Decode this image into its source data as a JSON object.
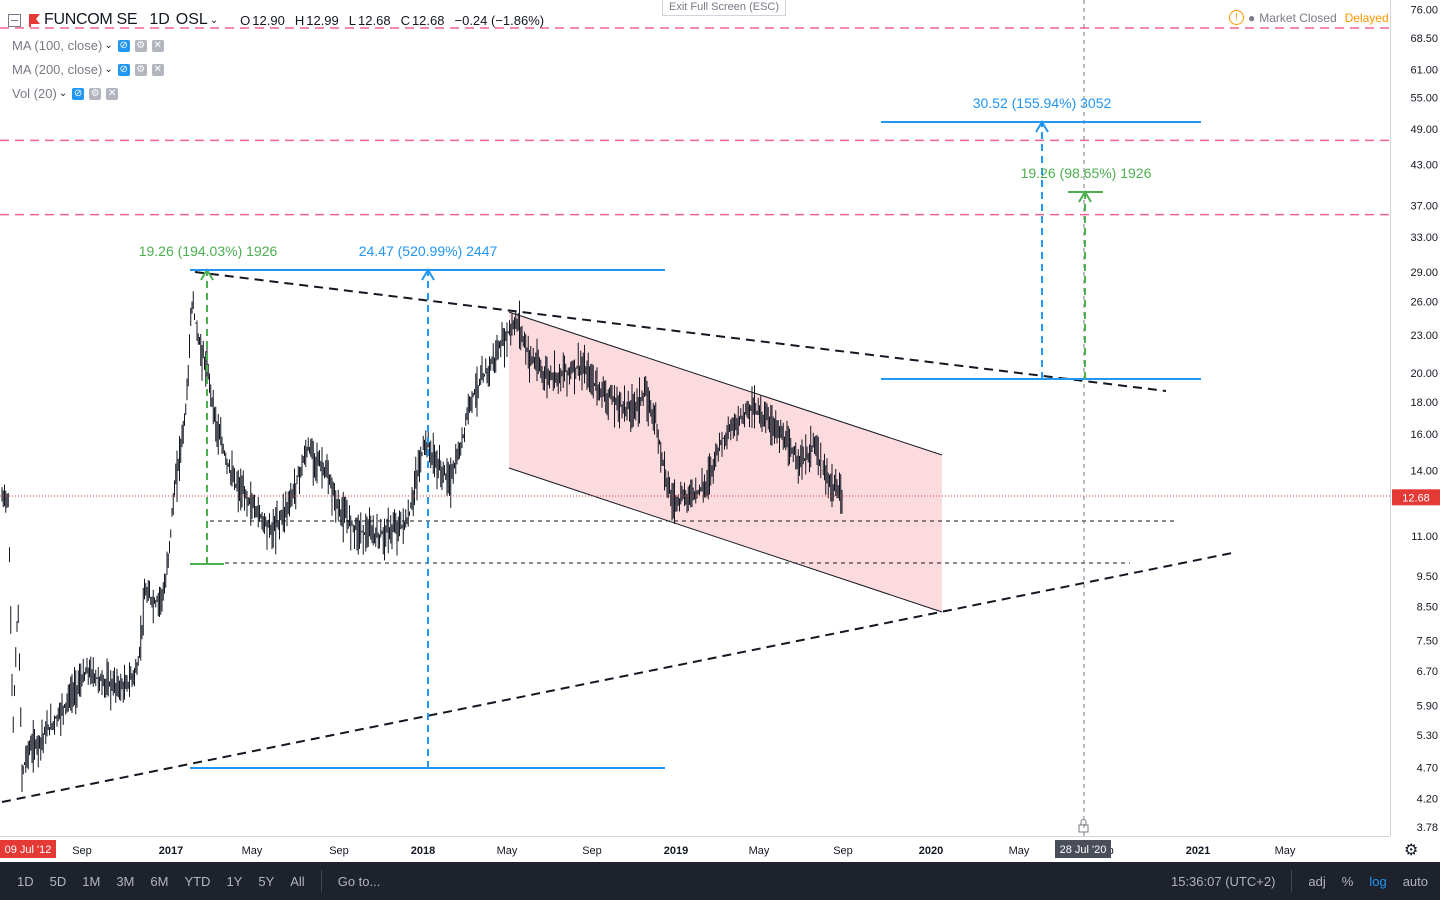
{
  "header": {
    "symbol": "FUNCOM SE",
    "timeframe": "1D",
    "exchange": "OSL",
    "ohlc": [
      {
        "k": "O",
        "v": "12.90"
      },
      {
        "k": "H",
        "v": "12.99"
      },
      {
        "k": "L",
        "v": "12.68"
      },
      {
        "k": "C",
        "v": "12.68"
      }
    ],
    "change": "−0.24 (−1.86%)"
  },
  "indicators": [
    {
      "label": "MA (100, close)"
    },
    {
      "label": "MA (200, close)"
    },
    {
      "label": "Vol (20)"
    }
  ],
  "exit_fullscreen": "Exit Full Screen (ESC)",
  "market_status": {
    "status": "Market Closed",
    "delayed": "Delayed"
  },
  "bottom_bar": {
    "ranges": [
      "1D",
      "5D",
      "1M",
      "3M",
      "6M",
      "YTD",
      "1Y",
      "5Y",
      "All"
    ],
    "goto": "Go to...",
    "time": "15:36:07 (UTC+2)",
    "adj": "adj",
    "percent": "%",
    "log": "log",
    "auto": "auto"
  },
  "colors": {
    "blue": "#2196f3",
    "green": "#4caf50",
    "red_dash": "#f06292",
    "channel_fill": "#f8c8cc",
    "price_label": "#e53935"
  },
  "chart_data": {
    "type": "candlestick",
    "scale": "log",
    "price_ticks": [
      "76.00",
      "68.50",
      "61.00",
      "55.00",
      "49.00",
      "43.00",
      "37.00",
      "33.00",
      "29.00",
      "26.00",
      "23.00",
      "20.00",
      "18.00",
      "16.00",
      "14.00",
      "11.00",
      "9.50",
      "8.50",
      "7.50",
      "6.70",
      "5.90",
      "5.30",
      "4.70",
      "4.20",
      "3.78"
    ],
    "time_ticks": [
      "Sep",
      "2017",
      "May",
      "Sep",
      "2018",
      "May",
      "Sep",
      "2019",
      "May",
      "Sep",
      "2020",
      "May",
      "Sep",
      "2021",
      "May"
    ],
    "time_start_label": "09 Jul '12",
    "crosshair_date_label": "28 Jul '20",
    "last_price_label": "12.68",
    "last_price": 12.68,
    "horizontal_red_dashed_levels": [
      71,
      47,
      35.8
    ],
    "measure_labels": [
      {
        "text": "19.26 (194.03%) 1926",
        "color": "green"
      },
      {
        "text": "24.47 (520.99%) 2447",
        "color": "blue"
      },
      {
        "text": "30.52 (155.94%) 3052",
        "color": "blue"
      },
      {
        "text": "19.26 (98.65%) 1926",
        "color": "green"
      }
    ]
  }
}
